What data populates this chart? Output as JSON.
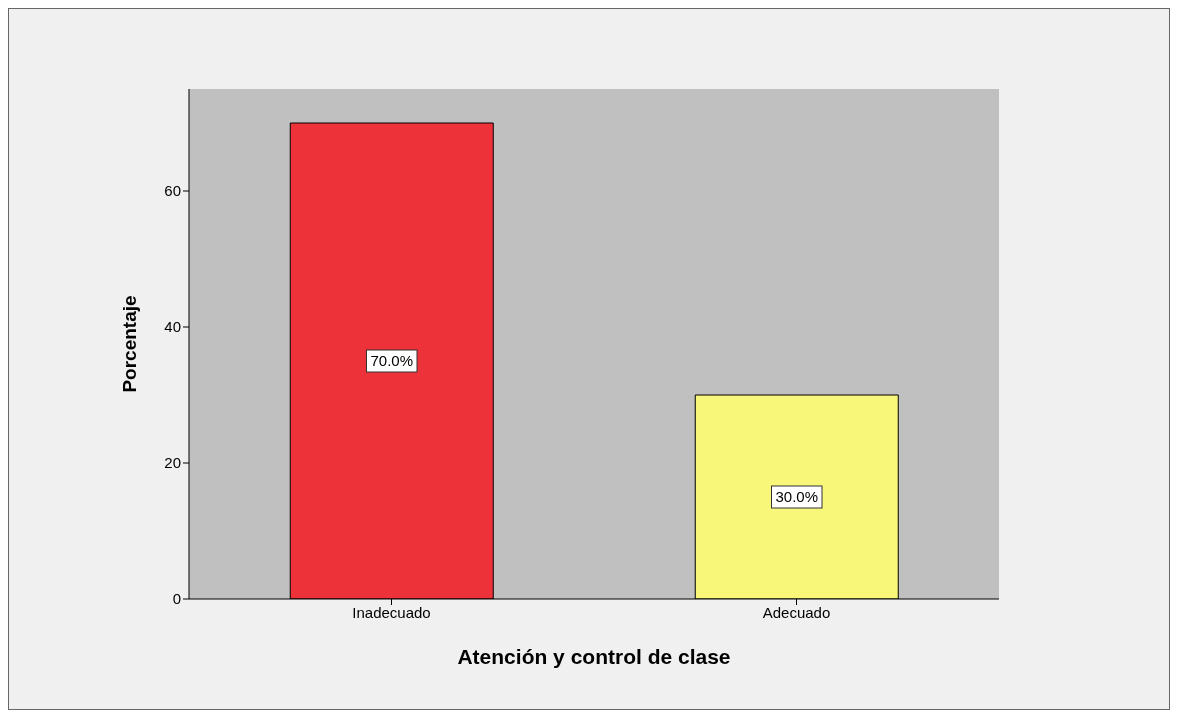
{
  "chart_data": {
    "type": "bar",
    "xlabel": "Atención y control de clase",
    "ylabel": "Porcentaje",
    "categories": [
      "Inadecuado",
      "Adecuado"
    ],
    "values": [
      70,
      30
    ],
    "colors": [
      "#ee3239",
      "#f9f77a"
    ],
    "value_labels": [
      "70.0%",
      "30.0%"
    ],
    "ylim": [
      0,
      75
    ],
    "yticks": [
      0,
      20,
      40,
      60
    ],
    "grid": false
  }
}
